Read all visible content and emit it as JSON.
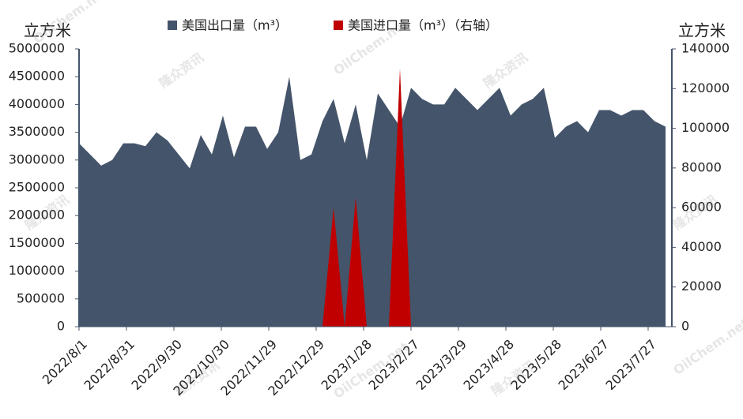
{
  "chart_data": {
    "type": "area",
    "y_axis_label": "立方米",
    "y2_axis_label": "立方米",
    "watermarks": [
      "隆众资讯",
      "OilChem.net"
    ],
    "x": [
      "2022/8/1",
      "2022/8/8",
      "2022/8/15",
      "2022/8/22",
      "2022/8/29",
      "2022/9/5",
      "2022/9/12",
      "2022/9/19",
      "2022/9/26",
      "2022/10/3",
      "2022/10/10",
      "2022/10/17",
      "2022/10/24",
      "2022/10/31",
      "2022/11/7",
      "2022/11/14",
      "2022/11/21",
      "2022/11/28",
      "2022/12/5",
      "2022/12/12",
      "2022/12/19",
      "2022/12/26",
      "2023/1/2",
      "2023/1/9",
      "2023/1/16",
      "2023/1/23",
      "2023/1/30",
      "2023/2/6",
      "2023/2/13",
      "2023/2/20",
      "2023/2/27",
      "2023/3/6",
      "2023/3/13",
      "2023/3/20",
      "2023/3/27",
      "2023/4/3",
      "2023/4/10",
      "2023/4/17",
      "2023/4/24",
      "2023/5/1",
      "2023/5/8",
      "2023/5/15",
      "2023/5/22",
      "2023/5/29",
      "2023/6/5",
      "2023/6/12",
      "2023/6/19",
      "2023/6/26",
      "2023/7/3",
      "2023/7/10",
      "2023/7/17",
      "2023/7/24",
      "2023/7/31",
      "2023/8/7"
    ],
    "xlim": [
      "2022/8/1",
      "2023/8/11"
    ],
    "xticks": [
      "2022/8/1",
      "2022/8/31",
      "2022/9/30",
      "2022/10/30",
      "2022/11/29",
      "2022/12/29",
      "2023/1/28",
      "2023/2/27",
      "2023/3/29",
      "2023/4/28",
      "2023/5/28",
      "2023/6/27",
      "2023/7/27"
    ],
    "series": [
      {
        "name": "美国出口量（m³）",
        "color": "#44546a",
        "axis": "y",
        "values": [
          3300000,
          3100000,
          2900000,
          3000000,
          3300000,
          3300000,
          3250000,
          3500000,
          3350000,
          3100000,
          2850000,
          3450000,
          3100000,
          3800000,
          3050000,
          3600000,
          3600000,
          3200000,
          3500000,
          4500000,
          3000000,
          3100000,
          3700000,
          4100000,
          3300000,
          4000000,
          3000000,
          4200000,
          3900000,
          3600000,
          4300000,
          4100000,
          4000000,
          4000000,
          4300000,
          4100000,
          3900000,
          4100000,
          4300000,
          3800000,
          4000000,
          4100000,
          4300000,
          3400000,
          3600000,
          3700000,
          3500000,
          3900000,
          3900000,
          3800000,
          3900000,
          3900000,
          3700000,
          3600000
        ]
      },
      {
        "name": "美国进口量（m³）（右轴）",
        "color": "#c00000",
        "axis": "y2",
        "values": [
          null,
          null,
          null,
          null,
          null,
          null,
          null,
          null,
          null,
          null,
          null,
          null,
          null,
          null,
          null,
          null,
          null,
          null,
          null,
          null,
          null,
          null,
          0,
          60000,
          0,
          65000,
          0,
          null,
          0,
          130000,
          0,
          null,
          null,
          null,
          null,
          null,
          null,
          null,
          null,
          null,
          null,
          null,
          null,
          null,
          null,
          null,
          null,
          null,
          null,
          null,
          null,
          null,
          null,
          null
        ]
      }
    ],
    "ylim": [
      0,
      5000000
    ],
    "yticks": [
      0,
      500000,
      1000000,
      1500000,
      2000000,
      2500000,
      3000000,
      3500000,
      4000000,
      4500000,
      5000000
    ],
    "y2lim": [
      0,
      140000
    ],
    "y2ticks": [
      0,
      20000,
      40000,
      60000,
      80000,
      100000,
      120000,
      140000
    ],
    "legend": "top"
  }
}
